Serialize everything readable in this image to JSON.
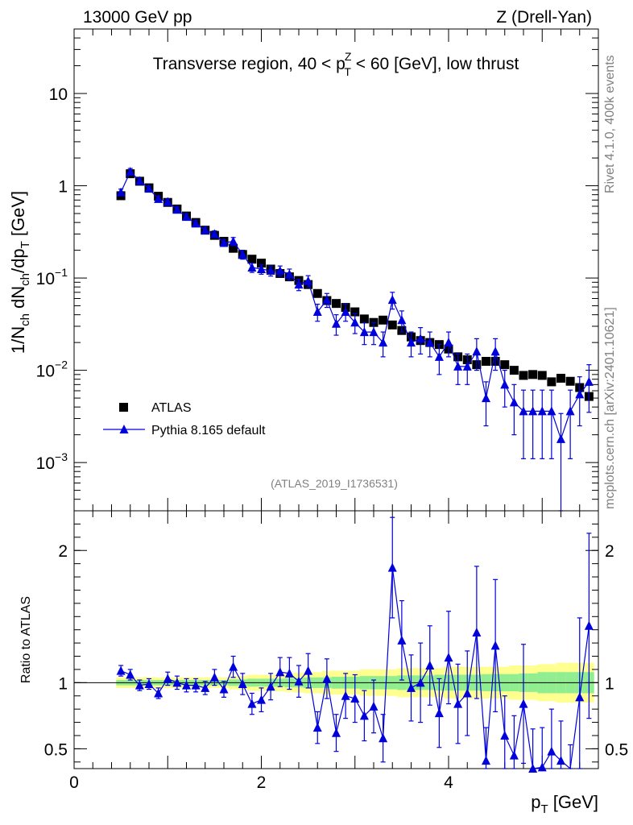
{
  "header": {
    "left": "13000 GeV pp",
    "right": "Z (Drell-Yan)"
  },
  "side_labels": {
    "rivet": "Rivet 4.1.0,  400k events",
    "mcplots": "mcplots.cern.ch [arXiv:2401.10621]"
  },
  "colors": {
    "atlas": "#000000",
    "pythia": "#0000dd",
    "band_inner": "#90ee90",
    "band_outer": "#ffff90"
  },
  "chart_data": [
    {
      "type": "scatter",
      "panel": "main",
      "yscale": "log",
      "title_parts": [
        "Transverse region, 40 < p",
        "Z",
        "T",
        " < 60 [GeV], low thrust"
      ],
      "ylabel_parts": [
        "1/N",
        "ch",
        " dN",
        "ch",
        "/dp",
        "T",
        " [GeV]"
      ],
      "xlim": [
        0,
        5.6
      ],
      "ylim": [
        0.0003,
        50
      ],
      "y_ticks": [
        {
          "value": 0.001,
          "base": "10",
          "exp": "−3"
        },
        {
          "value": 0.01,
          "base": "10",
          "exp": "−2"
        },
        {
          "value": 0.1,
          "base": "10",
          "exp": "−1"
        },
        {
          "value": 1,
          "base": "1",
          "exp": ""
        },
        {
          "value": 10,
          "base": "10",
          "exp": ""
        }
      ],
      "watermark": "(ATLAS_2019_I1736531)",
      "legend": [
        "ATLAS",
        "Pythia 8.165 default"
      ],
      "x": [
        0.5,
        0.6,
        0.7,
        0.8,
        0.9,
        1.0,
        1.1,
        1.2,
        1.3,
        1.4,
        1.5,
        1.6,
        1.7,
        1.8,
        1.9,
        2.0,
        2.1,
        2.2,
        2.3,
        2.4,
        2.5,
        2.6,
        2.7,
        2.8,
        2.9,
        3.0,
        3.1,
        3.2,
        3.3,
        3.4,
        3.5,
        3.6,
        3.7,
        3.8,
        3.9,
        4.0,
        4.1,
        4.2,
        4.3,
        4.4,
        4.5,
        4.6,
        4.7,
        4.8,
        4.9,
        5.0,
        5.1,
        5.2,
        5.3,
        5.4,
        5.5
      ],
      "series": [
        {
          "name": "ATLAS",
          "values": [
            0.78,
            1.35,
            1.12,
            0.95,
            0.77,
            0.66,
            0.56,
            0.47,
            0.4,
            0.33,
            0.29,
            0.25,
            0.21,
            0.18,
            0.16,
            0.145,
            0.125,
            0.112,
            0.103,
            0.094,
            0.085,
            0.068,
            0.057,
            0.053,
            0.048,
            0.043,
            0.036,
            0.033,
            0.035,
            0.031,
            0.027,
            0.023,
            0.021,
            0.02,
            0.019,
            0.017,
            0.014,
            0.013,
            0.0115,
            0.0125,
            0.0125,
            0.0115,
            0.01,
            0.0088,
            0.009,
            0.0088,
            0.0075,
            0.0082,
            0.0076,
            0.0065,
            0.0052
          ]
        },
        {
          "name": "Pythia 8.165 default",
          "values": [
            0.85,
            1.42,
            1.13,
            0.93,
            0.72,
            0.67,
            0.55,
            0.46,
            0.39,
            0.33,
            0.3,
            0.24,
            0.25,
            0.18,
            0.13,
            0.125,
            0.12,
            0.12,
            0.11,
            0.085,
            0.093,
            0.043,
            0.058,
            0.032,
            0.043,
            0.033,
            0.026,
            0.026,
            0.02,
            0.058,
            0.035,
            0.02,
            0.022,
            0.02,
            0.014,
            0.02,
            0.011,
            0.011,
            0.016,
            0.005,
            0.016,
            0.007,
            0.0045,
            0.0036,
            0.0036,
            0.0036,
            0.0036,
            0.0018,
            0.0036,
            0.0055,
            0.0075
          ],
          "err_lo": [
            0.07,
            0.12,
            0.08,
            0.06,
            0.05,
            0.05,
            0.04,
            0.035,
            0.03,
            0.025,
            0.025,
            0.02,
            0.025,
            0.02,
            0.015,
            0.015,
            0.015,
            0.015,
            0.015,
            0.012,
            0.013,
            0.009,
            0.01,
            0.008,
            0.009,
            0.008,
            0.007,
            0.007,
            0.006,
            0.012,
            0.009,
            0.006,
            0.007,
            0.006,
            0.005,
            0.006,
            0.004,
            0.004,
            0.006,
            0.0025,
            0.006,
            0.003,
            0.0025,
            0.0025,
            0.0025,
            0.0025,
            0.0025,
            0.0016,
            0.0025,
            0.003,
            0.004
          ],
          "err_hi": [
            0.07,
            0.12,
            0.08,
            0.06,
            0.05,
            0.05,
            0.04,
            0.035,
            0.03,
            0.025,
            0.025,
            0.02,
            0.025,
            0.02,
            0.015,
            0.015,
            0.015,
            0.015,
            0.015,
            0.012,
            0.013,
            0.009,
            0.01,
            0.008,
            0.009,
            0.008,
            0.007,
            0.007,
            0.006,
            0.012,
            0.009,
            0.006,
            0.007,
            0.006,
            0.005,
            0.006,
            0.004,
            0.004,
            0.006,
            0.0025,
            0.006,
            0.003,
            0.0025,
            0.0025,
            0.0025,
            0.0025,
            0.0025,
            0.0016,
            0.0025,
            0.003,
            0.004
          ]
        }
      ]
    },
    {
      "type": "line",
      "panel": "ratio",
      "ylabel": "Ratio to ATLAS",
      "xlabel_parts": [
        "p",
        "T",
        " [GeV]"
      ],
      "xlim": [
        0,
        5.6
      ],
      "ylim": [
        0.35,
        2.3
      ],
      "x_ticks": [
        0,
        2,
        4
      ],
      "x_tick_labels": [
        "0",
        "2",
        "4"
      ],
      "y_ticks": [
        0.5,
        1,
        2
      ],
      "y_tick_labels": [
        "0.5",
        "1",
        "2"
      ],
      "reference": 1,
      "band_x": [
        0.45,
        0.55,
        0.65,
        0.75,
        0.85,
        0.95,
        1.05,
        1.15,
        1.25,
        1.35,
        1.45,
        1.55,
        1.65,
        1.75,
        1.85,
        1.95,
        2.05,
        2.15,
        2.25,
        2.35,
        2.45,
        2.55,
        2.65,
        2.75,
        2.85,
        2.95,
        3.05,
        3.15,
        3.25,
        3.35,
        3.45,
        3.55,
        3.65,
        3.75,
        3.85,
        3.95,
        4.05,
        4.15,
        4.25,
        4.35,
        4.45,
        4.55,
        4.65,
        4.75,
        4.85,
        4.95,
        5.05,
        5.15,
        5.25,
        5.35,
        5.45,
        5.55
      ],
      "band_inner": [
        0.02,
        0.02,
        0.02,
        0.02,
        0.02,
        0.02,
        0.02,
        0.02,
        0.02,
        0.02,
        0.02,
        0.02,
        0.025,
        0.025,
        0.03,
        0.03,
        0.03,
        0.03,
        0.035,
        0.035,
        0.04,
        0.04,
        0.04,
        0.045,
        0.045,
        0.045,
        0.05,
        0.05,
        0.05,
        0.05,
        0.055,
        0.055,
        0.055,
        0.055,
        0.06,
        0.06,
        0.06,
        0.06,
        0.06,
        0.065,
        0.065,
        0.065,
        0.065,
        0.07,
        0.07,
        0.08,
        0.08,
        0.08,
        0.08,
        0.08,
        0.08,
        0.08
      ],
      "band_outer": [
        0.04,
        0.04,
        0.04,
        0.04,
        0.04,
        0.04,
        0.04,
        0.04,
        0.04,
        0.04,
        0.04,
        0.04,
        0.05,
        0.05,
        0.06,
        0.06,
        0.06,
        0.065,
        0.07,
        0.075,
        0.08,
        0.08,
        0.09,
        0.09,
        0.09,
        0.09,
        0.1,
        0.1,
        0.1,
        0.1,
        0.11,
        0.11,
        0.11,
        0.11,
        0.11,
        0.12,
        0.12,
        0.12,
        0.12,
        0.12,
        0.12,
        0.12,
        0.13,
        0.13,
        0.13,
        0.14,
        0.14,
        0.15,
        0.15,
        0.15,
        0.15,
        0.15
      ],
      "x": [
        0.5,
        0.6,
        0.7,
        0.8,
        0.9,
        1.0,
        1.1,
        1.2,
        1.3,
        1.4,
        1.5,
        1.6,
        1.7,
        1.8,
        1.9,
        2.0,
        2.1,
        2.2,
        2.3,
        2.4,
        2.5,
        2.6,
        2.7,
        2.8,
        2.9,
        3.0,
        3.1,
        3.2,
        3.3,
        3.4,
        3.5,
        3.6,
        3.7,
        3.8,
        3.9,
        4.0,
        4.1,
        4.2,
        4.3,
        4.4,
        4.5,
        4.6,
        4.7,
        4.8,
        4.9,
        5.0,
        5.1,
        5.2,
        5.3,
        5.4,
        5.5
      ],
      "values": [
        1.09,
        1.06,
        0.98,
        0.99,
        0.92,
        1.03,
        1.0,
        0.98,
        0.98,
        0.96,
        1.04,
        0.95,
        1.12,
        0.99,
        0.84,
        0.87,
        0.97,
        1.08,
        1.07,
        1.01,
        1.09,
        0.66,
        1.03,
        0.62,
        0.9,
        0.88,
        0.75,
        0.82,
        0.58,
        1.87,
        1.32,
        0.96,
        1.0,
        1.13,
        0.77,
        1.19,
        0.84,
        0.92,
        1.38,
        0.41,
        1.28,
        0.6,
        0.45,
        0.84,
        0.35,
        0.36,
        0.48,
        0.41,
        0.28,
        0.89,
        1.43
      ],
      "err_lo": [
        0.04,
        0.04,
        0.04,
        0.04,
        0.04,
        0.05,
        0.05,
        0.05,
        0.05,
        0.05,
        0.06,
        0.06,
        0.08,
        0.08,
        0.08,
        0.09,
        0.1,
        0.11,
        0.12,
        0.12,
        0.13,
        0.12,
        0.15,
        0.14,
        0.17,
        0.18,
        0.19,
        0.2,
        0.18,
        0.38,
        0.3,
        0.25,
        0.3,
        0.3,
        0.26,
        0.35,
        0.3,
        0.32,
        0.5,
        0.25,
        0.5,
        0.3,
        0.3,
        0.45,
        0.3,
        0.3,
        0.32,
        0.3,
        0.25,
        0.6,
        0.7
      ],
      "err_hi": [
        0.04,
        0.04,
        0.04,
        0.04,
        0.04,
        0.05,
        0.05,
        0.05,
        0.05,
        0.05,
        0.06,
        0.06,
        0.08,
        0.08,
        0.08,
        0.09,
        0.1,
        0.11,
        0.12,
        0.12,
        0.13,
        0.12,
        0.15,
        0.14,
        0.17,
        0.18,
        0.19,
        0.2,
        0.18,
        0.38,
        0.3,
        0.25,
        0.3,
        0.3,
        0.26,
        0.35,
        0.3,
        0.32,
        0.5,
        0.25,
        0.5,
        0.3,
        0.3,
        0.45,
        0.3,
        0.3,
        0.32,
        0.3,
        0.25,
        0.6,
        0.7
      ]
    }
  ]
}
